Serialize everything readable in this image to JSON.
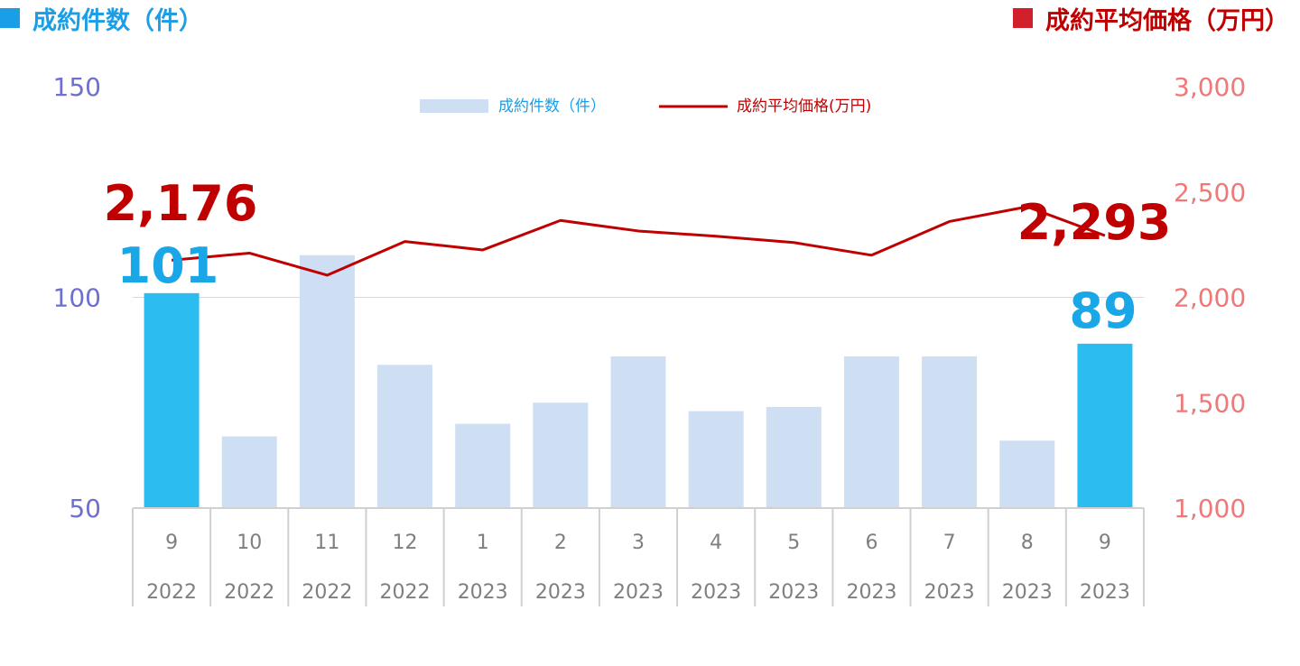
{
  "header": {
    "left_title": "成約件数（件）",
    "right_title": "成約平均価格（万円）"
  },
  "colors": {
    "bar_default": "#cfdff3",
    "bar_highlight": "#2bbdf0",
    "line": "#c00000",
    "left_axis": "#6f6fcf",
    "right_axis": "#f07878"
  },
  "chart_data": {
    "type": "bar",
    "categories": [
      "9",
      "10",
      "11",
      "12",
      "1",
      "2",
      "3",
      "4",
      "5",
      "6",
      "7",
      "8",
      "9"
    ],
    "year_labels": [
      "2022",
      "2022",
      "2022",
      "2022",
      "2023",
      "2023",
      "2023",
      "2023",
      "2023",
      "2023",
      "2023",
      "2023",
      "2023"
    ],
    "series": [
      {
        "name": "成約件数（件）",
        "type": "bar",
        "axis": "left",
        "values": [
          101,
          67,
          110,
          84,
          70,
          75,
          86,
          73,
          74,
          86,
          86,
          66,
          89
        ],
        "highlight": [
          0,
          12
        ]
      },
      {
        "name": "成約平均価格(万円)",
        "type": "line",
        "axis": "right",
        "values": [
          2176,
          2210,
          2105,
          2265,
          2225,
          2365,
          2315,
          2290,
          2260,
          2200,
          2360,
          2430,
          2293
        ]
      }
    ],
    "y_left": {
      "min": 50,
      "max": 150,
      "ticks": [
        "50",
        "100",
        "150"
      ]
    },
    "y_right": {
      "min": 1000,
      "max": 3000,
      "ticks": [
        "1,000",
        "1,500",
        "2,000",
        "2,500",
        "3,000"
      ]
    },
    "gridlines": [
      100
    ],
    "legend_position": "top-center",
    "annotations": [
      {
        "text": "2,176",
        "series": 1,
        "index": 0
      },
      {
        "text": "101",
        "series": 0,
        "index": 0
      },
      {
        "text": "2,293",
        "series": 1,
        "index": 12
      },
      {
        "text": "89",
        "series": 0,
        "index": 12
      }
    ]
  }
}
